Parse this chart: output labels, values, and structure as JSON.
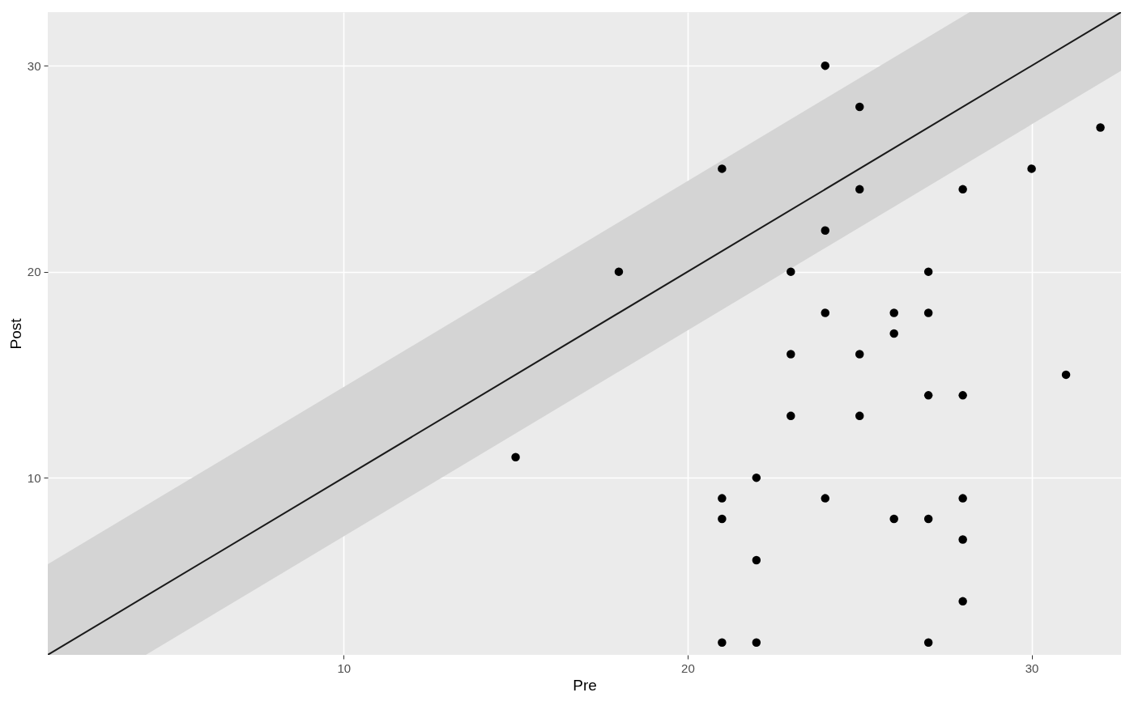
{
  "chart_data": {
    "type": "scatter",
    "xlabel": "Pre",
    "ylabel": "Post",
    "xlim": [
      1.4,
      32.6
    ],
    "ylim": [
      1.4,
      32.6
    ],
    "xticks": [
      10,
      20,
      30
    ],
    "yticks": [
      10,
      20,
      30
    ],
    "grid": true,
    "marker": "circle",
    "series": [
      {
        "type": "line",
        "color": "#1a1a1a",
        "line_style": "solid",
        "marker": "none",
        "x": [
          1.4,
          4.25,
          28.2,
          32.6
        ],
        "values": [
          1.4,
          4.25,
          28.2,
          32.6
        ],
        "lower": [
          1.4,
          1.4,
          25.35,
          29.75
        ],
        "upper": [
          5.8,
          8.65,
          32.6,
          32.6
        ]
      },
      {
        "color": "#000000",
        "x": [
          24,
          25,
          32,
          21,
          30,
          25,
          28,
          24,
          18,
          23,
          27,
          24,
          26,
          27,
          26,
          23,
          25,
          31,
          27,
          28,
          23,
          25,
          15,
          22,
          21,
          24,
          28,
          21,
          26,
          27,
          28,
          22,
          28,
          21,
          22,
          27
        ],
        "values": [
          30,
          28,
          27,
          25,
          25,
          24,
          24,
          22,
          20,
          20,
          20,
          18,
          18,
          18,
          17,
          16,
          16,
          15,
          14,
          14,
          13,
          13,
          11,
          10,
          9,
          9,
          9,
          8,
          8,
          8,
          7,
          6,
          4,
          2,
          2,
          2
        ]
      }
    ]
  }
}
